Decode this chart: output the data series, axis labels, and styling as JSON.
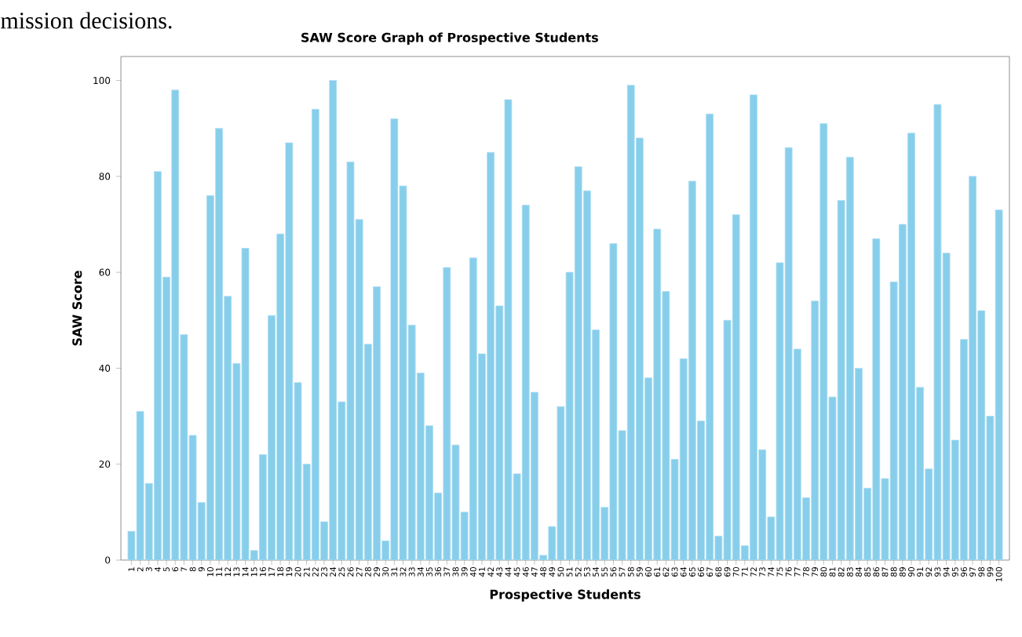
{
  "chart_data": {
    "type": "bar",
    "title": "SAW Score Graph of Prospective Students",
    "xlabel": "Prospective Students",
    "ylabel": "SAW Score",
    "annotations": [
      "mission decisions."
    ],
    "categories": [
      "1",
      "2",
      "3",
      "4",
      "5",
      "6",
      "7",
      "8",
      "9",
      "10",
      "11",
      "12",
      "13",
      "14",
      "15",
      "16",
      "17",
      "18",
      "19",
      "20",
      "21",
      "22",
      "23",
      "24",
      "25",
      "26",
      "27",
      "28",
      "29",
      "30",
      "31",
      "32",
      "33",
      "34",
      "35",
      "36",
      "37",
      "38",
      "39",
      "40",
      "41",
      "42",
      "43",
      "44",
      "45",
      "46",
      "47",
      "48",
      "49",
      "50",
      "51",
      "52",
      "53",
      "54",
      "55",
      "56",
      "57",
      "58",
      "59",
      "60",
      "61",
      "62",
      "63",
      "64",
      "65",
      "66",
      "67",
      "68",
      "69",
      "70",
      "71",
      "72",
      "73",
      "74",
      "75",
      "76",
      "77",
      "78",
      "79",
      "80",
      "81",
      "82",
      "83",
      "84",
      "85",
      "86",
      "87",
      "88",
      "89",
      "90",
      "91",
      "92",
      "93",
      "94",
      "95",
      "96",
      "97",
      "98",
      "99",
      "100"
    ],
    "values": [
      6,
      31,
      16,
      81,
      59,
      98,
      47,
      26,
      12,
      76,
      90,
      55,
      41,
      65,
      2,
      22,
      51,
      68,
      87,
      37,
      20,
      94,
      8,
      100,
      33,
      83,
      71,
      45,
      57,
      4,
      92,
      78,
      49,
      39,
      28,
      14,
      61,
      24,
      10,
      63,
      43,
      85,
      53,
      96,
      18,
      74,
      35,
      1,
      7,
      32,
      60,
      82,
      77,
      48,
      11,
      66,
      27,
      99,
      88,
      38,
      69,
      56,
      21,
      42,
      79,
      29,
      93,
      5,
      50,
      72,
      3,
      97,
      23,
      9,
      62,
      86,
      44,
      13,
      54,
      91,
      34,
      75,
      84,
      40,
      15,
      67,
      17,
      58,
      70,
      89,
      36,
      19,
      95,
      64,
      25,
      46,
      80,
      52,
      30,
      73
    ],
    "color": "#87ceeb",
    "ylim": [
      0,
      105
    ],
    "yticks": [
      0,
      20,
      40,
      60,
      80,
      100
    ],
    "grid": false
  }
}
